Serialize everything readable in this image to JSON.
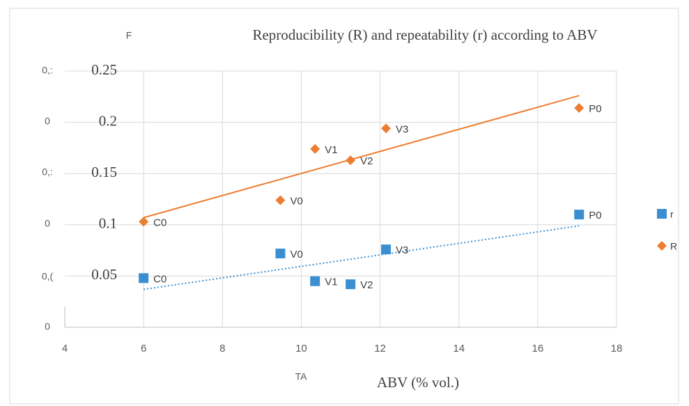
{
  "chart_data": {
    "type": "scatter",
    "title": "Reproducibility (R) and repeatability (r) according to ABV",
    "xlabel": "ABV (% vol.)",
    "xlim": [
      4,
      18
    ],
    "xticks": [
      4,
      6,
      8,
      10,
      12,
      14,
      16,
      18
    ],
    "ylim": [
      0,
      0.25
    ],
    "yticks": [
      0.05,
      0.1,
      0.15,
      0.2,
      0.25
    ],
    "grid": true,
    "legend": "right",
    "series": [
      {
        "name": "r",
        "color": "#3b8fd0",
        "marker": "square",
        "x": [
          6,
          9.47,
          10.35,
          11.25,
          12.15,
          17.05
        ],
        "values": [
          0.048,
          0.072,
          0.045,
          0.042,
          0.076,
          0.11
        ],
        "labels": [
          "C0",
          "V0",
          "V1",
          "V2",
          "V3",
          "P0"
        ],
        "trendline": {
          "x": [
            6,
            17.05
          ],
          "values": [
            0.037,
            0.099
          ],
          "style": "dotted"
        }
      },
      {
        "name": "R",
        "color": "#ed7d31",
        "marker": "diamond",
        "x": [
          6,
          9.47,
          10.35,
          11.25,
          12.15,
          17.05
        ],
        "values": [
          0.103,
          0.124,
          0.174,
          0.163,
          0.194,
          0.214
        ],
        "labels": [
          "C0",
          "V0",
          "V1",
          "V2",
          "V3",
          "P0"
        ],
        "trendline": {
          "x": [
            6,
            17.05
          ],
          "values": [
            0.107,
            0.226
          ],
          "style": "solid"
        }
      }
    ],
    "background_texts": [
      "F",
      "0,:",
      "0",
      "0,:",
      "0",
      "0,(",
      "0",
      "TA"
    ]
  }
}
